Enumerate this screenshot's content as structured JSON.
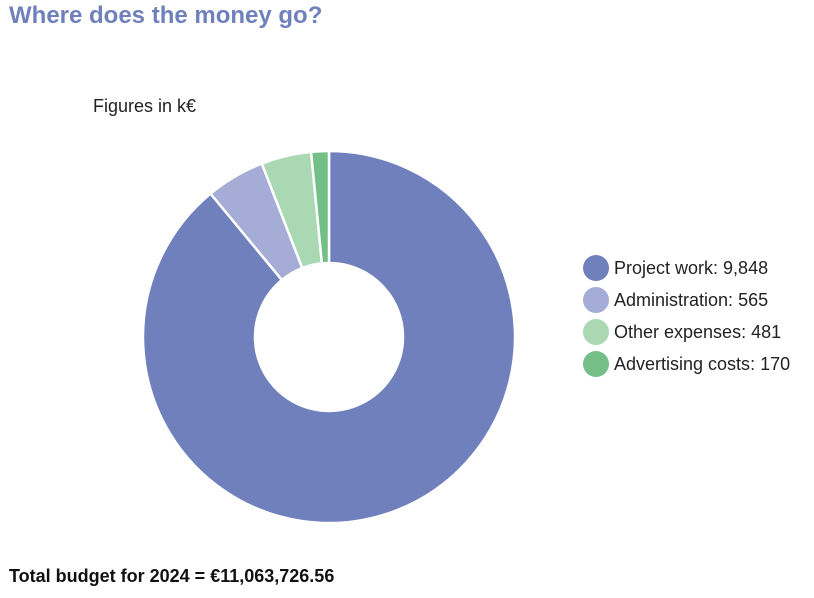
{
  "title": "Where does the money go?",
  "footer": "Total budget for 2024 = €11,063,726.56",
  "chart_data": {
    "type": "pie",
    "donut": true,
    "subtitle": "Figures in k€",
    "legend_position": "right",
    "slices": [
      {
        "name": "Project work",
        "value": 9848,
        "value_label": "9,848",
        "color": "#6f80bc"
      },
      {
        "name": "Administration",
        "value": 565,
        "value_label": "565",
        "color": "#a5acd6"
      },
      {
        "name": "Other expenses",
        "value": 481,
        "value_label": "481",
        "color": "#a9d8b3"
      },
      {
        "name": "Advertising costs",
        "value": 170,
        "value_label": "170",
        "color": "#74be87"
      }
    ]
  }
}
